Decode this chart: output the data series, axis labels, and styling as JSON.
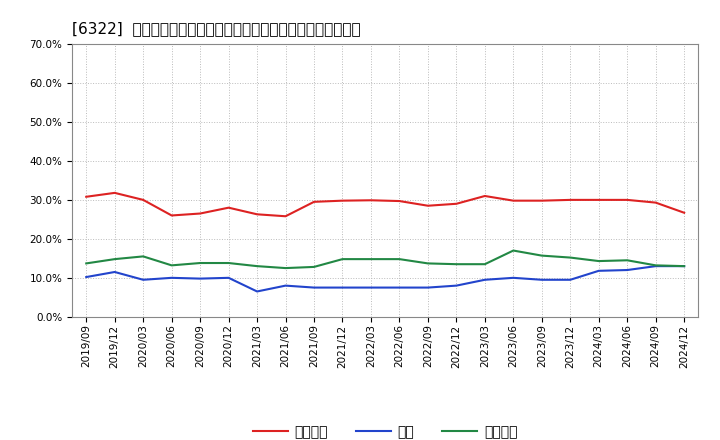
{
  "title": "[6322]  売上債権、在庫、買入債務の総資産に対する比率の推移",
  "x_labels": [
    "2019/09",
    "2019/12",
    "2020/03",
    "2020/06",
    "2020/09",
    "2020/12",
    "2021/03",
    "2021/06",
    "2021/09",
    "2021/12",
    "2022/03",
    "2022/06",
    "2022/09",
    "2022/12",
    "2023/03",
    "2023/06",
    "2023/09",
    "2023/12",
    "2024/03",
    "2024/06",
    "2024/09",
    "2024/12"
  ],
  "receivables": [
    0.308,
    0.318,
    0.3,
    0.26,
    0.265,
    0.28,
    0.263,
    0.258,
    0.295,
    0.298,
    0.299,
    0.297,
    0.285,
    0.29,
    0.31,
    0.298,
    0.298,
    0.3,
    0.3,
    0.3,
    0.293,
    0.267
  ],
  "inventory": [
    0.102,
    0.115,
    0.095,
    0.1,
    0.098,
    0.1,
    0.065,
    0.08,
    0.075,
    0.075,
    0.075,
    0.075,
    0.075,
    0.08,
    0.095,
    0.1,
    0.095,
    0.095,
    0.118,
    0.12,
    0.13,
    0.13
  ],
  "payables": [
    0.137,
    0.148,
    0.155,
    0.132,
    0.138,
    0.138,
    0.13,
    0.125,
    0.128,
    0.148,
    0.148,
    0.148,
    0.137,
    0.135,
    0.135,
    0.17,
    0.157,
    0.152,
    0.143,
    0.145,
    0.132,
    0.13
  ],
  "receivables_color": "#dd2222",
  "inventory_color": "#2244cc",
  "payables_color": "#228844",
  "legend_label_receivables": "売上債権",
  "legend_label_inventory": "在庫",
  "legend_label_payables": "買入債務",
  "ylim": [
    0.0,
    0.7
  ],
  "yticks": [
    0.0,
    0.1,
    0.2,
    0.3,
    0.4,
    0.5,
    0.6,
    0.7
  ],
  "bg_color": "#ffffff",
  "grid_color": "#bbbbbb",
  "title_fontsize": 11,
  "tick_fontsize": 7.5,
  "legend_fontsize": 10
}
